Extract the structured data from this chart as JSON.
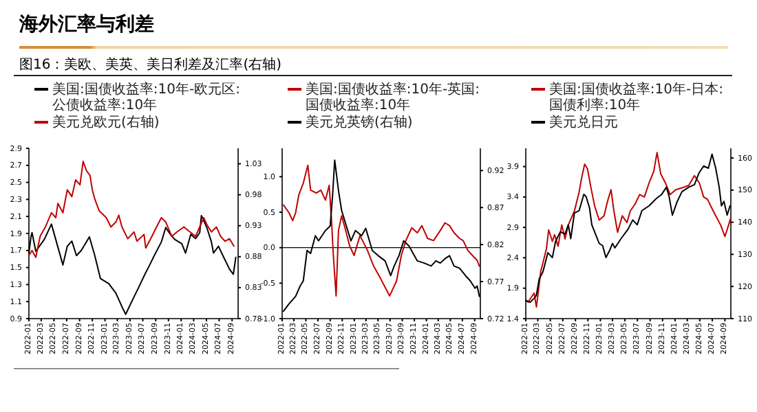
{
  "chart_data": [
    {
      "type": "line",
      "title": "海外汇率与利差",
      "subtitle": "图16：美欧、美英、美日利差及汇率(右轴)",
      "legend": "top",
      "grid": false,
      "marker": "none",
      "line_style": "solid",
      "xlim": [
        "2022-01-01",
        "2024-09-30"
      ],
      "xticks": [
        "2022-01",
        "2022-03",
        "2022-05",
        "2022-07",
        "2022-09",
        "2022-11",
        "2023-01",
        "2023-03",
        "2023-05",
        "2023-07",
        "2023-09",
        "2023-11",
        "2024-01",
        "2024-03",
        "2024-05",
        "2024-07",
        "2024-09"
      ],
      "ylim": [
        0.9,
        2.9
      ],
      "yticks": [
        0.9,
        1.1,
        1.3,
        1.5,
        1.7,
        1.9,
        2.1,
        2.3,
        2.5,
        2.7,
        2.9
      ],
      "y2lim": [
        0.78,
        1.055
      ],
      "y2ticks": [
        0.78,
        0.83,
        0.88,
        0.93,
        0.98,
        1.03
      ],
      "series": [
        {
          "name": "美国:国债收益率:10年-欧元区:公债收益率:10年",
          "color": "#000000",
          "x": [
            "2022-01-01",
            "2022-01-11",
            "2022-01-16",
            "2022-02-03",
            "2022-03-16",
            "2022-04-19",
            "2022-06-13",
            "2022-07-04",
            "2022-07-26",
            "2022-08-17",
            "2022-09-09",
            "2022-10-18",
            "2022-11-13",
            "2022-12-10",
            "2023-01-19",
            "2023-02-22",
            "2023-03-23",
            "2023-04-10",
            "2023-05-07",
            "2023-06-10",
            "2023-07-11",
            "2023-08-03",
            "2023-08-25",
            "2023-09-28",
            "2023-10-19",
            "2023-11-10",
            "2023-12-01",
            "2024-01-04",
            "2024-01-22",
            "2024-02-16",
            "2024-03-10",
            "2024-03-30",
            "2024-04-07",
            "2024-05-03",
            "2024-05-25",
            "2024-06-04",
            "2024-06-28",
            "2024-07-19",
            "2024-08-20",
            "2024-09-07",
            "2024-09-19"
          ],
          "values": [
            1.67,
            1.86,
            1.91,
            1.69,
            1.83,
            2.01,
            1.53,
            1.75,
            1.81,
            1.64,
            1.7,
            1.86,
            1.64,
            1.37,
            1.31,
            1.2,
            1.04,
            0.95,
            1.09,
            1.26,
            1.42,
            1.53,
            1.64,
            1.8,
            1.97,
            1.89,
            1.83,
            1.78,
            1.67,
            1.89,
            1.84,
            1.91,
            2.11,
            1.97,
            1.8,
            1.67,
            1.75,
            1.64,
            1.48,
            1.42,
            1.62
          ]
        },
        {
          "name": "美元兑欧元(右轴)",
          "color": "#c00000",
          "axis": "y2",
          "x": [
            "2022-01-01",
            "2022-01-16",
            "2022-02-03",
            "2022-02-24",
            "2022-03-21",
            "2022-04-19",
            "2022-05-10",
            "2022-05-20",
            "2022-06-13",
            "2022-07-04",
            "2022-07-26",
            "2022-08-13",
            "2022-09-03",
            "2022-09-18",
            "2022-10-04",
            "2022-10-21",
            "2022-11-01",
            "2022-11-13",
            "2022-12-04",
            "2023-01-07",
            "2023-01-29",
            "2023-02-22",
            "2023-03-08",
            "2023-03-23",
            "2023-04-20",
            "2023-05-20",
            "2023-06-03",
            "2023-07-07",
            "2023-07-15",
            "2023-08-14",
            "2023-09-05",
            "2023-09-28",
            "2023-10-19",
            "2023-11-17",
            "2023-12-12",
            "2024-01-14",
            "2024-02-12",
            "2024-03-10",
            "2024-03-30",
            "2024-04-18",
            "2024-05-03",
            "2024-05-25",
            "2024-06-18",
            "2024-07-08",
            "2024-07-29",
            "2024-08-20",
            "2024-09-10"
          ],
          "values": [
            0.882,
            0.89,
            0.879,
            0.913,
            0.928,
            0.951,
            0.943,
            0.966,
            0.951,
            0.988,
            0.977,
            1.004,
            0.996,
            1.034,
            1.019,
            1.011,
            0.988,
            0.973,
            0.954,
            0.943,
            0.928,
            0.936,
            0.947,
            0.928,
            0.909,
            0.92,
            0.905,
            0.916,
            0.894,
            0.913,
            0.928,
            0.943,
            0.936,
            0.913,
            0.92,
            0.928,
            0.92,
            0.913,
            0.928,
            0.943,
            0.932,
            0.92,
            0.928,
            0.913,
            0.905,
            0.909,
            0.897
          ]
        }
      ]
    },
    {
      "type": "line",
      "legend": "top",
      "grid": false,
      "marker": "none",
      "line_style": "solid",
      "xlim": [
        "2022-01-01",
        "2024-09-30"
      ],
      "xticks": [
        "2022-01",
        "2022-03",
        "2022-05",
        "2022-07",
        "2022-09",
        "2022-11",
        "2023-01",
        "2023-03",
        "2023-05",
        "2023-07",
        "2023-09",
        "2023-11",
        "2024-01",
        "2024-03",
        "2024-05",
        "2024-07",
        "2024-09"
      ],
      "ylim": [
        -1,
        1.4
      ],
      "yticks": [
        {
          "value": -1,
          "label": "-1.0"
        },
        -0.5,
        {
          "value": 0,
          "label": "0.0"
        },
        0.5,
        {
          "value": 1,
          "label": "1.0"
        }
      ],
      "y2lim": [
        0.72,
        0.95
      ],
      "y2ticks": [
        0.72,
        0.77,
        0.82,
        0.87,
        0.92
      ],
      "ref_lines": [
        {
          "axis": "y",
          "value": 0,
          "color": "#000000"
        }
      ],
      "series": [
        {
          "name": "美国:国债收益率:10年-英国:国债收益率:10年",
          "color": "#c00000",
          "x": [
            "2022-01-08",
            "2022-02-05",
            "2022-02-23",
            "2022-03-10",
            "2022-03-26",
            "2022-04-18",
            "2022-05-11",
            "2022-05-25",
            "2022-06-23",
            "2022-07-16",
            "2022-08-08",
            "2022-08-27",
            "2022-09-08",
            "2022-09-17",
            "2022-10-01",
            "2022-10-13",
            "2022-10-29",
            "2022-11-15",
            "2022-12-08",
            "2022-12-31",
            "2023-01-30",
            "2023-03-09",
            "2023-04-09",
            "2023-05-13",
            "2023-06-29",
            "2023-08-03",
            "2023-08-27",
            "2023-09-19",
            "2023-10-19",
            "2023-11-16",
            "2023-12-09",
            "2024-01-07",
            "2024-02-06",
            "2024-03-11",
            "2024-04-04",
            "2024-04-27",
            "2024-05-20",
            "2024-06-17",
            "2024-07-05",
            "2024-07-29",
            "2024-08-21",
            "2024-09-14",
            "2024-09-25"
          ],
          "values": [
            0.6,
            0.49,
            0.38,
            0.49,
            0.74,
            0.91,
            1.16,
            0.81,
            0.77,
            0.81,
            0.67,
            0.88,
            0.38,
            -0.11,
            -0.68,
            0.24,
            0.45,
            0.28,
            0.03,
            -0.11,
            0.17,
            -0.04,
            -0.26,
            -0.43,
            -0.68,
            -0.47,
            -0.11,
            0.1,
            0.28,
            0.21,
            0.31,
            0.13,
            0.1,
            0.24,
            0.35,
            0.31,
            0.21,
            0.13,
            0.1,
            -0.04,
            -0.11,
            -0.18,
            -0.26
          ]
        },
        {
          "name": "美元兑英镑(右轴)",
          "color": "#000000",
          "axis": "y2",
          "x": [
            "2022-01-08",
            "2022-02-05",
            "2022-03-10",
            "2022-04-02",
            "2022-04-18",
            "2022-05-07",
            "2022-05-25",
            "2022-06-18",
            "2022-07-04",
            "2022-08-08",
            "2022-09-01",
            "2022-09-13",
            "2022-09-24",
            "2022-10-13",
            "2022-10-29",
            "2022-11-22",
            "2022-12-15",
            "2023-01-07",
            "2023-02-07",
            "2023-02-28",
            "2023-04-02",
            "2023-05-02",
            "2023-06-06",
            "2023-07-04",
            "2023-07-22",
            "2023-08-15",
            "2023-09-08",
            "2023-10-05",
            "2023-11-16",
            "2023-12-21",
            "2024-01-25",
            "2024-02-18",
            "2024-03-11",
            "2024-04-04",
            "2024-04-27",
            "2024-05-20",
            "2024-06-17",
            "2024-07-17",
            "2024-08-10",
            "2024-09-03",
            "2024-09-14",
            "2024-09-25"
          ],
          "values": [
            0.73,
            0.74,
            0.75,
            0.764,
            0.771,
            0.812,
            0.808,
            0.832,
            0.825,
            0.839,
            0.845,
            0.886,
            0.934,
            0.893,
            0.866,
            0.845,
            0.825,
            0.839,
            0.832,
            0.842,
            0.812,
            0.805,
            0.798,
            0.778,
            0.791,
            0.805,
            0.825,
            0.818,
            0.798,
            0.795,
            0.791,
            0.798,
            0.795,
            0.801,
            0.805,
            0.791,
            0.788,
            0.778,
            0.771,
            0.761,
            0.764,
            0.75
          ]
        }
      ]
    },
    {
      "type": "line",
      "legend": "top",
      "grid": false,
      "marker": "none",
      "line_style": "solid",
      "xlim": [
        "2022-01-01",
        "2024-09-30"
      ],
      "xticks": [
        "2022-01",
        "2022-03",
        "2022-05",
        "2022-07",
        "2022-09",
        "2022-11",
        "2023-01",
        "2023-03",
        "2023-05",
        "2023-07",
        "2023-09",
        "2023-11",
        "2024-01",
        "2024-03",
        "2024-05",
        "2024-07",
        "2024-09"
      ],
      "ylim": [
        1.4,
        4.2
      ],
      "yticks": [
        1.4,
        1.9,
        2.4,
        2.9,
        3.4,
        3.9
      ],
      "y2lim": [
        110,
        163
      ],
      "y2ticks": [
        110,
        120,
        130,
        140,
        150,
        160
      ],
      "series": [
        {
          "name": "美国:国债收益率:10年-日本:国债利率:10年",
          "color": "#c00000",
          "x": [
            "2022-01-01",
            "2022-01-12",
            "2022-01-28",
            "2022-02-11",
            "2022-02-22",
            "2022-03-04",
            "2022-03-15",
            "2022-04-01",
            "2022-04-12",
            "2022-04-23",
            "2022-05-11",
            "2022-05-22",
            "2022-06-08",
            "2022-06-26",
            "2022-07-12",
            "2022-07-28",
            "2022-08-27",
            "2022-09-19",
            "2022-10-01",
            "2022-10-16",
            "2022-10-30",
            "2022-11-16",
            "2022-12-04",
            "2022-12-26",
            "2023-01-19",
            "2023-02-04",
            "2023-02-22",
            "2023-03-08",
            "2023-03-26",
            "2023-04-18",
            "2023-05-11",
            "2023-05-27",
            "2023-06-19",
            "2023-07-12",
            "2023-08-04",
            "2023-08-27",
            "2023-09-19",
            "2023-10-05",
            "2023-10-23",
            "2023-11-15",
            "2023-12-08",
            "2024-01-05",
            "2024-02-04",
            "2024-03-08",
            "2024-04-05",
            "2024-04-29",
            "2024-05-20",
            "2024-06-08",
            "2024-06-30",
            "2024-07-18",
            "2024-08-11",
            "2024-09-01",
            "2024-09-19",
            "2024-09-29"
          ],
          "values": [
            1.71,
            1.67,
            1.75,
            1.82,
            1.59,
            1.86,
            2.17,
            2.4,
            2.55,
            2.86,
            2.67,
            2.78,
            2.59,
            2.94,
            2.71,
            2.94,
            3.17,
            3.48,
            3.71,
            3.94,
            3.86,
            3.55,
            3.25,
            3.02,
            3.09,
            3.32,
            3.52,
            3.17,
            2.82,
            3.09,
            2.98,
            3.17,
            3.28,
            3.44,
            3.4,
            3.63,
            3.82,
            4.13,
            3.78,
            3.63,
            3.44,
            3.52,
            3.55,
            3.59,
            3.75,
            3.63,
            3.4,
            3.36,
            3.21,
            3.09,
            2.94,
            2.75,
            2.94,
            3.05
          ]
        },
        {
          "name": "美元兑日元",
          "color": "#000000",
          "axis": "y2",
          "x": [
            "2022-01-01",
            "2022-01-23",
            "2022-02-15",
            "2022-02-22",
            "2022-03-08",
            "2022-03-26",
            "2022-04-19",
            "2022-05-11",
            "2022-05-27",
            "2022-06-19",
            "2022-07-12",
            "2022-07-28",
            "2022-08-09",
            "2022-08-27",
            "2022-09-19",
            "2022-10-12",
            "2022-10-23",
            "2022-11-09",
            "2022-11-20",
            "2022-12-08",
            "2022-12-26",
            "2023-01-12",
            "2023-01-28",
            "2023-02-15",
            "2023-03-01",
            "2023-03-13",
            "2023-04-12",
            "2023-05-16",
            "2023-06-08",
            "2023-06-30",
            "2023-07-23",
            "2023-08-27",
            "2023-09-30",
            "2023-10-28",
            "2023-11-20",
            "2023-12-03",
            "2023-12-19",
            "2024-01-12",
            "2024-02-04",
            "2024-03-08",
            "2024-04-05",
            "2024-04-27",
            "2024-05-20",
            "2024-06-12",
            "2024-06-30",
            "2024-07-18",
            "2024-08-04",
            "2024-08-15",
            "2024-08-27",
            "2024-09-12",
            "2024-09-26"
          ],
          "values": [
            115.6,
            115.1,
            116.6,
            117.3,
            122.4,
            124.6,
            130.5,
            129.0,
            134.1,
            137.0,
            136.3,
            139.2,
            134.9,
            142.9,
            143.6,
            148.7,
            148.0,
            144.4,
            139.2,
            136.3,
            133.4,
            132.7,
            129.0,
            131.2,
            133.4,
            132.0,
            134.9,
            137.8,
            140.7,
            139.2,
            143.6,
            145.1,
            147.3,
            148.7,
            150.9,
            148.0,
            142.2,
            146.5,
            149.5,
            150.9,
            151.7,
            155.3,
            157.5,
            156.8,
            161.2,
            156.8,
            150.9,
            145.1,
            146.5,
            142.2,
            145.1
          ]
        }
      ]
    }
  ]
}
